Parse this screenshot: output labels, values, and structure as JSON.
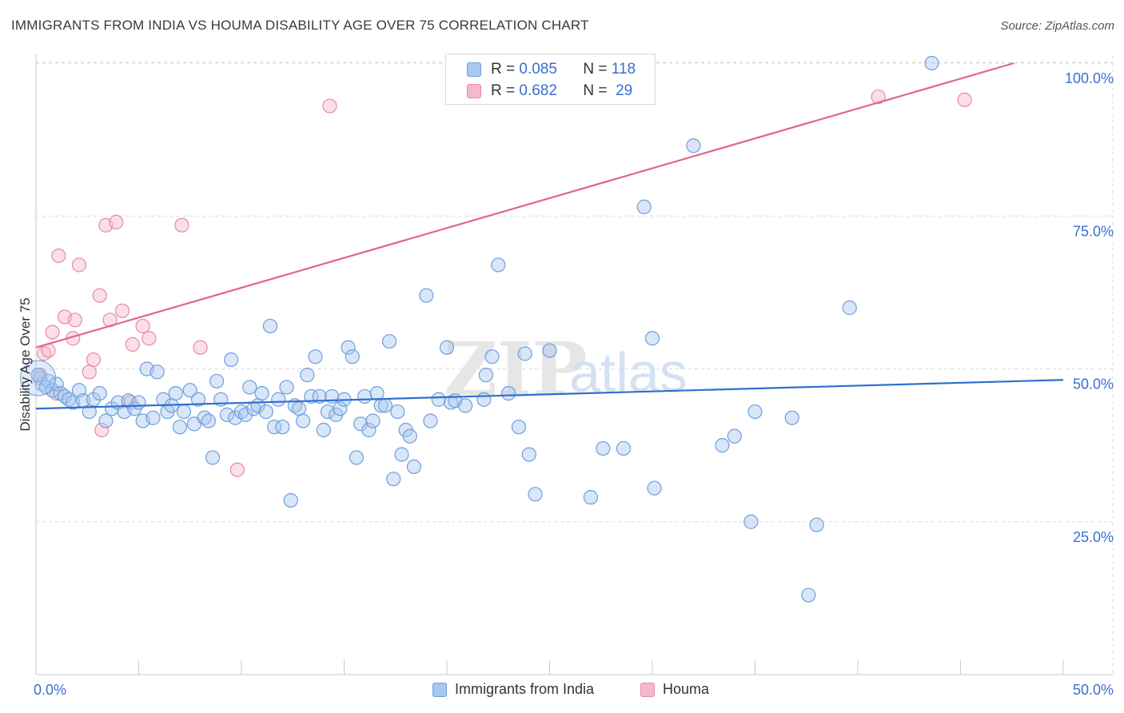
{
  "title": "IMMIGRANTS FROM INDIA VS HOUMA DISABILITY AGE OVER 75 CORRELATION CHART",
  "source": "Source: ZipAtlas.com",
  "watermark": {
    "zip": "ZIP",
    "atlas": "atlas"
  },
  "colors": {
    "blue_fill": "#a9c8f0",
    "blue_stroke": "#6d9fdc",
    "blue_line": "#2f6fd1",
    "pink_fill": "#f6b8cb",
    "pink_stroke": "#e889a6",
    "pink_line": "#e0658f",
    "axis_text": "#3a6fd0",
    "grid": "#dcdcdc"
  },
  "legend": {
    "r_label": "R =",
    "n_label": "N =",
    "blue": {
      "r": "0.085",
      "n": "118"
    },
    "pink": {
      "r": "0.682",
      "n": "29"
    }
  },
  "bottom_legend": {
    "blue": "Immigrants from India",
    "pink": "Houma"
  },
  "chart_data": {
    "type": "scatter",
    "xlabel": "",
    "ylabel": "Disability Age Over 75",
    "xlim": [
      0,
      50
    ],
    "ylim": [
      0,
      100
    ],
    "x_tick_labels": [
      "0.0%",
      "50.0%"
    ],
    "y_ticks": [
      25,
      50,
      75,
      100
    ],
    "y_tick_labels": [
      "25.0%",
      "50.0%",
      "75.0%",
      "100.0%"
    ],
    "grid": true,
    "legend_position": "top-center",
    "series": [
      {
        "name": "Immigrants from India",
        "color": "blue",
        "trend": {
          "x": [
            0,
            50
          ],
          "y": [
            43.5,
            48.2
          ]
        },
        "points": [
          [
            0.2,
            48.5
          ],
          [
            0.3,
            47.5
          ],
          [
            0.5,
            47
          ],
          [
            0.6,
            48
          ],
          [
            0.8,
            46.5
          ],
          [
            1.0,
            47.5
          ],
          [
            1.2,
            46
          ],
          [
            1.4,
            45.5
          ],
          [
            1.6,
            45
          ],
          [
            1.8,
            44.5
          ],
          [
            2.1,
            46.5
          ],
          [
            2.3,
            44.8
          ],
          [
            2.6,
            43
          ],
          [
            2.8,
            45
          ],
          [
            3.1,
            46
          ],
          [
            3.4,
            41.5
          ],
          [
            3.7,
            43.5
          ],
          [
            4.0,
            44.5
          ],
          [
            4.3,
            43
          ],
          [
            4.5,
            44.8
          ],
          [
            4.8,
            43.5
          ],
          [
            5.0,
            44.5
          ],
          [
            5.2,
            41.5
          ],
          [
            5.4,
            50
          ],
          [
            5.7,
            42
          ],
          [
            5.9,
            49.5
          ],
          [
            6.2,
            45
          ],
          [
            6.4,
            43
          ],
          [
            6.6,
            44
          ],
          [
            6.8,
            46
          ],
          [
            7.0,
            40.5
          ],
          [
            7.2,
            43
          ],
          [
            7.5,
            46.5
          ],
          [
            7.7,
            41
          ],
          [
            7.9,
            45
          ],
          [
            8.2,
            42
          ],
          [
            8.4,
            41.5
          ],
          [
            8.6,
            35.5
          ],
          [
            8.8,
            48
          ],
          [
            9.0,
            45
          ],
          [
            9.3,
            42.5
          ],
          [
            9.5,
            51.5
          ],
          [
            9.7,
            42
          ],
          [
            10.0,
            43
          ],
          [
            10.2,
            42.5
          ],
          [
            10.4,
            47
          ],
          [
            10.6,
            43.5
          ],
          [
            10.8,
            44
          ],
          [
            11.0,
            46
          ],
          [
            11.2,
            43
          ],
          [
            11.4,
            57
          ],
          [
            11.6,
            40.5
          ],
          [
            11.8,
            45
          ],
          [
            12.0,
            40.5
          ],
          [
            12.2,
            47
          ],
          [
            12.4,
            28.5
          ],
          [
            12.6,
            44
          ],
          [
            12.8,
            43.5
          ],
          [
            13.0,
            41.5
          ],
          [
            13.2,
            49
          ],
          [
            13.4,
            45.5
          ],
          [
            13.6,
            52
          ],
          [
            13.8,
            45.5
          ],
          [
            14.0,
            40
          ],
          [
            14.2,
            43
          ],
          [
            14.4,
            45.5
          ],
          [
            14.6,
            42.5
          ],
          [
            14.8,
            43.5
          ],
          [
            15.0,
            45
          ],
          [
            15.2,
            53.5
          ],
          [
            15.4,
            52
          ],
          [
            15.6,
            35.5
          ],
          [
            15.8,
            41
          ],
          [
            16.0,
            45.5
          ],
          [
            16.2,
            40
          ],
          [
            16.4,
            41.5
          ],
          [
            16.6,
            46
          ],
          [
            16.8,
            44
          ],
          [
            17.0,
            44
          ],
          [
            17.2,
            54.5
          ],
          [
            17.4,
            32
          ],
          [
            17.6,
            43
          ],
          [
            17.8,
            36
          ],
          [
            18.0,
            40
          ],
          [
            18.2,
            39
          ],
          [
            18.4,
            34
          ],
          [
            19.2,
            41.5
          ],
          [
            19.0,
            62
          ],
          [
            19.6,
            45
          ],
          [
            20.0,
            53.5
          ],
          [
            20.2,
            44.5
          ],
          [
            20.4,
            44.8
          ],
          [
            20.9,
            44
          ],
          [
            21.8,
            45
          ],
          [
            21.9,
            49
          ],
          [
            22.2,
            52
          ],
          [
            22.5,
            67
          ],
          [
            23.0,
            46
          ],
          [
            23.5,
            40.5
          ],
          [
            23.8,
            52.5
          ],
          [
            24.0,
            36
          ],
          [
            24.3,
            29.5
          ],
          [
            25.0,
            53
          ],
          [
            27.0,
            29
          ],
          [
            27.6,
            37
          ],
          [
            28.6,
            37
          ],
          [
            29.6,
            76.5
          ],
          [
            30.0,
            55
          ],
          [
            30.1,
            30.5
          ],
          [
            32.0,
            86.5
          ],
          [
            33.4,
            37.5
          ],
          [
            34.0,
            39
          ],
          [
            34.8,
            25
          ],
          [
            35.0,
            43
          ],
          [
            36.8,
            42
          ],
          [
            38.0,
            24.5
          ],
          [
            37.6,
            13
          ],
          [
            39.6,
            60
          ],
          [
            43.6,
            100
          ],
          [
            0.1,
            49
          ]
        ]
      },
      {
        "name": "Houma",
        "color": "pink",
        "trend": {
          "x": [
            0,
            47.6
          ],
          "y": [
            53.5,
            100
          ]
        },
        "points": [
          [
            0.2,
            49
          ],
          [
            0.4,
            52.5
          ],
          [
            0.6,
            53
          ],
          [
            0.8,
            56
          ],
          [
            1.0,
            46
          ],
          [
            1.1,
            68.5
          ],
          [
            1.4,
            58.5
          ],
          [
            1.8,
            55
          ],
          [
            1.9,
            58
          ],
          [
            2.1,
            67
          ],
          [
            2.6,
            49.5
          ],
          [
            2.8,
            51.5
          ],
          [
            3.1,
            62
          ],
          [
            3.2,
            40
          ],
          [
            3.4,
            73.5
          ],
          [
            3.6,
            58
          ],
          [
            3.9,
            74
          ],
          [
            4.2,
            59.5
          ],
          [
            4.6,
            44.5
          ],
          [
            4.7,
            54
          ],
          [
            5.2,
            57
          ],
          [
            5.5,
            55
          ],
          [
            7.1,
            73.5
          ],
          [
            8.0,
            53.5
          ],
          [
            9.8,
            33.5
          ],
          [
            14.3,
            93
          ],
          [
            41.0,
            94.5
          ],
          [
            45.2,
            94
          ]
        ]
      }
    ]
  }
}
